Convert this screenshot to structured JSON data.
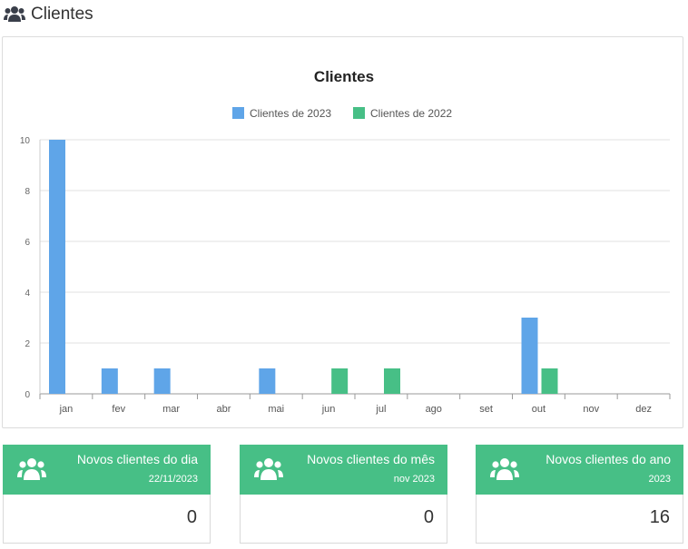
{
  "header": {
    "title": "Clientes",
    "icon": "users-icon"
  },
  "chart_data": {
    "type": "bar",
    "title": "Clientes",
    "categories": [
      "jan",
      "fev",
      "mar",
      "abr",
      "mai",
      "jun",
      "jul",
      "ago",
      "set",
      "out",
      "nov",
      "dez"
    ],
    "series": [
      {
        "name": "Clientes de 2023",
        "color": "#5fa5e8",
        "values": [
          10,
          1,
          1,
          0,
          1,
          0,
          0,
          0,
          0,
          3,
          0,
          0
        ]
      },
      {
        "name": "Clientes de 2022",
        "color": "#47bf86",
        "values": [
          0,
          0,
          0,
          0,
          0,
          1,
          1,
          0,
          0,
          1,
          0,
          0
        ]
      }
    ],
    "yticks": [
      0,
      2,
      4,
      6,
      8,
      10
    ],
    "ylim": [
      0,
      10
    ],
    "legend": "top-center",
    "grid": true
  },
  "stats": [
    {
      "title": "Novos clientes do dia",
      "subtitle": "22/11/2023",
      "value": "0",
      "icon": "users-icon"
    },
    {
      "title": "Novos clientes do mês",
      "subtitle": "nov 2023",
      "value": "0",
      "icon": "users-icon"
    },
    {
      "title": "Novos clientes do ano",
      "subtitle": "2023",
      "value": "16",
      "icon": "users-icon"
    }
  ],
  "colors": {
    "accent": "#47bf86",
    "blue": "#5fa5e8"
  }
}
